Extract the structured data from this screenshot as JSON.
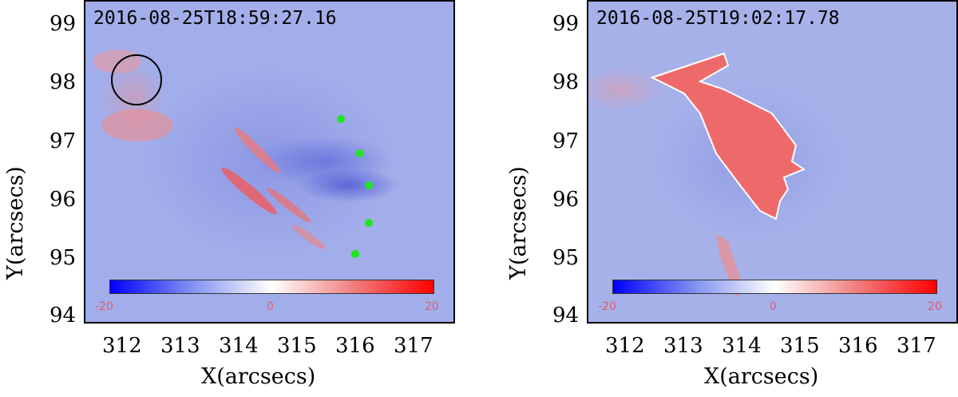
{
  "panels": [
    {
      "timestamp": "2016-08-25T18:59:27.16",
      "xlabel": "X(arcsecs)",
      "ylabel": "Y(arcsecs)",
      "xticks": [
        "312",
        "313",
        "314",
        "315",
        "316",
        "317"
      ],
      "yticks": [
        "99",
        "98",
        "97",
        "96",
        "95",
        "94"
      ],
      "colorbar": {
        "min": "-20",
        "mid": "0",
        "max": "20"
      }
    },
    {
      "timestamp": "2016-08-25T19:02:17.78",
      "xlabel": "X(arcsecs)",
      "ylabel": "Y(arcsecs)",
      "xticks": [
        "312",
        "313",
        "314",
        "315",
        "316",
        "317"
      ],
      "yticks": [
        "99",
        "98",
        "97",
        "96",
        "95",
        "94"
      ],
      "colorbar": {
        "min": "-20",
        "mid": "0",
        "max": "20"
      }
    }
  ],
  "colors": {
    "negative": "#0000ff",
    "zero": "#ffffff",
    "positive": "#ff0000",
    "marker": "#1ee61e"
  }
}
